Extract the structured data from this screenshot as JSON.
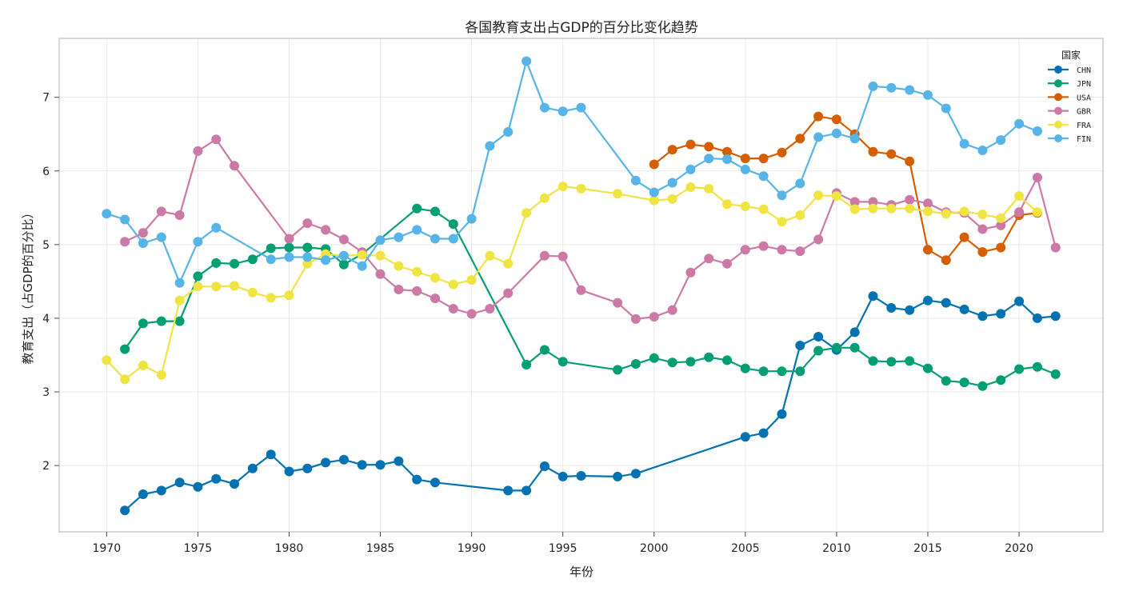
{
  "chart_data": {
    "type": "line",
    "title": "各国教育支出占GDP的百分比变化趋势",
    "xlabel": "年份",
    "ylabel": "教育支出（占GDP的百分比）",
    "xlim": [
      1967.4,
      2024.6
    ],
    "ylim": [
      1.1,
      7.8
    ],
    "xticks": [
      1970,
      1975,
      1980,
      1985,
      1990,
      1995,
      2000,
      2005,
      2010,
      2015,
      2020
    ],
    "yticks": [
      2,
      3,
      4,
      5,
      6,
      7
    ],
    "grid": true,
    "legend": {
      "title": "国家",
      "placement": "top-right"
    },
    "series": [
      {
        "name": "CHN",
        "color": "#0072b2",
        "points": [
          [
            1971,
            1.39
          ],
          [
            1972,
            1.61
          ],
          [
            1973,
            1.66
          ],
          [
            1974,
            1.77
          ],
          [
            1975,
            1.71
          ],
          [
            1976,
            1.82
          ],
          [
            1977,
            1.75
          ],
          [
            1978,
            1.96
          ],
          [
            1979,
            2.15
          ],
          [
            1980,
            1.92
          ],
          [
            1981,
            1.96
          ],
          [
            1982,
            2.04
          ],
          [
            1983,
            2.08
          ],
          [
            1984,
            2.01
          ],
          [
            1985,
            2.01
          ],
          [
            1986,
            2.06
          ],
          [
            1987,
            1.81
          ],
          [
            1988,
            1.77
          ],
          [
            1992,
            1.66
          ],
          [
            1993,
            1.66
          ],
          [
            1994,
            1.99
          ],
          [
            1995,
            1.85
          ],
          [
            1996,
            1.86
          ],
          [
            1998,
            1.85
          ],
          [
            1999,
            1.89
          ],
          [
            2005,
            2.39
          ],
          [
            2006,
            2.44
          ],
          [
            2007,
            2.7
          ],
          [
            2008,
            3.63
          ],
          [
            2009,
            3.75
          ],
          [
            2010,
            3.57
          ],
          [
            2011,
            3.81
          ],
          [
            2012,
            4.3
          ],
          [
            2013,
            4.14
          ],
          [
            2014,
            4.11
          ],
          [
            2015,
            4.24
          ],
          [
            2016,
            4.21
          ],
          [
            2017,
            4.12
          ],
          [
            2018,
            4.03
          ],
          [
            2019,
            4.06
          ],
          [
            2020,
            4.23
          ],
          [
            2021,
            4.0
          ],
          [
            2022,
            4.03
          ]
        ]
      },
      {
        "name": "JPN",
        "color": "#009e73",
        "points": [
          [
            1971,
            3.58
          ],
          [
            1972,
            3.93
          ],
          [
            1973,
            3.96
          ],
          [
            1974,
            3.96
          ],
          [
            1975,
            4.57
          ],
          [
            1976,
            4.75
          ],
          [
            1977,
            4.74
          ],
          [
            1978,
            4.8
          ],
          [
            1979,
            4.95
          ],
          [
            1980,
            4.96
          ],
          [
            1981,
            4.96
          ],
          [
            1982,
            4.94
          ],
          [
            1983,
            4.73
          ],
          [
            1984,
            4.87
          ],
          [
            1987,
            5.49
          ],
          [
            1988,
            5.45
          ],
          [
            1989,
            5.28
          ],
          [
            1993,
            3.37
          ],
          [
            1994,
            3.57
          ],
          [
            1995,
            3.41
          ],
          [
            1998,
            3.3
          ],
          [
            1999,
            3.38
          ],
          [
            2000,
            3.46
          ],
          [
            2001,
            3.4
          ],
          [
            2002,
            3.41
          ],
          [
            2003,
            3.47
          ],
          [
            2004,
            3.43
          ],
          [
            2005,
            3.32
          ],
          [
            2006,
            3.28
          ],
          [
            2007,
            3.28
          ],
          [
            2008,
            3.28
          ],
          [
            2009,
            3.56
          ],
          [
            2010,
            3.6
          ],
          [
            2011,
            3.6
          ],
          [
            2012,
            3.42
          ],
          [
            2013,
            3.41
          ],
          [
            2014,
            3.42
          ],
          [
            2015,
            3.32
          ],
          [
            2016,
            3.15
          ],
          [
            2017,
            3.13
          ],
          [
            2018,
            3.08
          ],
          [
            2019,
            3.16
          ],
          [
            2020,
            3.31
          ],
          [
            2021,
            3.34
          ],
          [
            2022,
            3.24
          ]
        ]
      },
      {
        "name": "USA",
        "color": "#d55e00",
        "points": [
          [
            2000,
            6.09
          ],
          [
            2001,
            6.29
          ],
          [
            2002,
            6.36
          ],
          [
            2003,
            6.33
          ],
          [
            2004,
            6.26
          ],
          [
            2005,
            6.17
          ],
          [
            2006,
            6.17
          ],
          [
            2007,
            6.25
          ],
          [
            2008,
            6.44
          ],
          [
            2009,
            6.74
          ],
          [
            2010,
            6.7
          ],
          [
            2011,
            6.5
          ],
          [
            2012,
            6.26
          ],
          [
            2013,
            6.23
          ],
          [
            2014,
            6.13
          ],
          [
            2015,
            4.93
          ],
          [
            2016,
            4.79
          ],
          [
            2017,
            5.1
          ],
          [
            2018,
            4.9
          ],
          [
            2019,
            4.96
          ],
          [
            2020,
            5.4
          ],
          [
            2021,
            5.43
          ]
        ]
      },
      {
        "name": "GBR",
        "color": "#cc79a7",
        "points": [
          [
            1971,
            5.04
          ],
          [
            1972,
            5.16
          ],
          [
            1973,
            5.45
          ],
          [
            1974,
            5.4
          ],
          [
            1975,
            6.27
          ],
          [
            1976,
            6.43
          ],
          [
            1977,
            6.07
          ],
          [
            1980,
            5.08
          ],
          [
            1981,
            5.29
          ],
          [
            1982,
            5.2
          ],
          [
            1983,
            5.07
          ],
          [
            1984,
            4.9
          ],
          [
            1985,
            4.6
          ],
          [
            1986,
            4.39
          ],
          [
            1987,
            4.37
          ],
          [
            1988,
            4.27
          ],
          [
            1989,
            4.13
          ],
          [
            1990,
            4.06
          ],
          [
            1991,
            4.13
          ],
          [
            1992,
            4.34
          ],
          [
            1994,
            4.85
          ],
          [
            1995,
            4.84
          ],
          [
            1996,
            4.38
          ],
          [
            1998,
            4.21
          ],
          [
            1999,
            3.99
          ],
          [
            2000,
            4.02
          ],
          [
            2001,
            4.11
          ],
          [
            2002,
            4.62
          ],
          [
            2003,
            4.81
          ],
          [
            2004,
            4.74
          ],
          [
            2005,
            4.93
          ],
          [
            2006,
            4.98
          ],
          [
            2007,
            4.93
          ],
          [
            2008,
            4.91
          ],
          [
            2009,
            5.07
          ],
          [
            2010,
            5.7
          ],
          [
            2011,
            5.58
          ],
          [
            2012,
            5.58
          ],
          [
            2013,
            5.54
          ],
          [
            2014,
            5.61
          ],
          [
            2015,
            5.56
          ],
          [
            2016,
            5.44
          ],
          [
            2017,
            5.43
          ],
          [
            2018,
            5.21
          ],
          [
            2019,
            5.26
          ],
          [
            2020,
            5.44
          ],
          [
            2021,
            5.91
          ],
          [
            2022,
            4.96
          ]
        ]
      },
      {
        "name": "FRA",
        "color": "#f0e442",
        "points": [
          [
            1970,
            3.43
          ],
          [
            1971,
            3.17
          ],
          [
            1972,
            3.36
          ],
          [
            1973,
            3.23
          ],
          [
            1974,
            4.24
          ],
          [
            1975,
            4.43
          ],
          [
            1976,
            4.43
          ],
          [
            1977,
            4.44
          ],
          [
            1978,
            4.35
          ],
          [
            1979,
            4.28
          ],
          [
            1980,
            4.31
          ],
          [
            1981,
            4.74
          ],
          [
            1982,
            4.87
          ],
          [
            1983,
            4.85
          ],
          [
            1984,
            4.86
          ],
          [
            1985,
            4.85
          ],
          [
            1986,
            4.71
          ],
          [
            1987,
            4.63
          ],
          [
            1988,
            4.55
          ],
          [
            1989,
            4.46
          ],
          [
            1990,
            4.52
          ],
          [
            1991,
            4.85
          ],
          [
            1992,
            4.74
          ],
          [
            1993,
            5.43
          ],
          [
            1994,
            5.63
          ],
          [
            1995,
            5.79
          ],
          [
            1996,
            5.76
          ],
          [
            1998,
            5.69
          ],
          [
            2000,
            5.6
          ],
          [
            2001,
            5.62
          ],
          [
            2002,
            5.78
          ],
          [
            2003,
            5.76
          ],
          [
            2004,
            5.55
          ],
          [
            2005,
            5.52
          ],
          [
            2006,
            5.48
          ],
          [
            2007,
            5.31
          ],
          [
            2008,
            5.4
          ],
          [
            2009,
            5.67
          ],
          [
            2010,
            5.66
          ],
          [
            2011,
            5.48
          ],
          [
            2012,
            5.49
          ],
          [
            2013,
            5.49
          ],
          [
            2014,
            5.49
          ],
          [
            2015,
            5.45
          ],
          [
            2016,
            5.42
          ],
          [
            2017,
            5.45
          ],
          [
            2018,
            5.41
          ],
          [
            2019,
            5.36
          ],
          [
            2020,
            5.66
          ],
          [
            2021,
            5.44
          ]
        ]
      },
      {
        "name": "FIN",
        "color": "#56b4e9",
        "points": [
          [
            1970,
            5.42
          ],
          [
            1971,
            5.34
          ],
          [
            1972,
            5.02
          ],
          [
            1973,
            5.1
          ],
          [
            1974,
            4.48
          ],
          [
            1975,
            5.04
          ],
          [
            1976,
            5.23
          ],
          [
            1979,
            4.8
          ],
          [
            1980,
            4.83
          ],
          [
            1981,
            4.83
          ],
          [
            1982,
            4.79
          ],
          [
            1983,
            4.85
          ],
          [
            1984,
            4.71
          ],
          [
            1985,
            5.06
          ],
          [
            1986,
            5.1
          ],
          [
            1987,
            5.2
          ],
          [
            1988,
            5.08
          ],
          [
            1989,
            5.08
          ],
          [
            1990,
            5.35
          ],
          [
            1991,
            6.34
          ],
          [
            1992,
            6.53
          ],
          [
            1993,
            7.49
          ],
          [
            1994,
            6.86
          ],
          [
            1995,
            6.81
          ],
          [
            1996,
            6.86
          ],
          [
            1999,
            5.87
          ],
          [
            2000,
            5.71
          ],
          [
            2001,
            5.84
          ],
          [
            2002,
            6.02
          ],
          [
            2003,
            6.17
          ],
          [
            2004,
            6.16
          ],
          [
            2005,
            6.02
          ],
          [
            2006,
            5.93
          ],
          [
            2007,
            5.67
          ],
          [
            2008,
            5.83
          ],
          [
            2009,
            6.46
          ],
          [
            2010,
            6.51
          ],
          [
            2011,
            6.44
          ],
          [
            2012,
            7.15
          ],
          [
            2013,
            7.13
          ],
          [
            2014,
            7.1
          ],
          [
            2015,
            7.03
          ],
          [
            2016,
            6.85
          ],
          [
            2017,
            6.37
          ],
          [
            2018,
            6.28
          ],
          [
            2019,
            6.42
          ],
          [
            2020,
            6.64
          ],
          [
            2021,
            6.54
          ]
        ]
      }
    ]
  }
}
